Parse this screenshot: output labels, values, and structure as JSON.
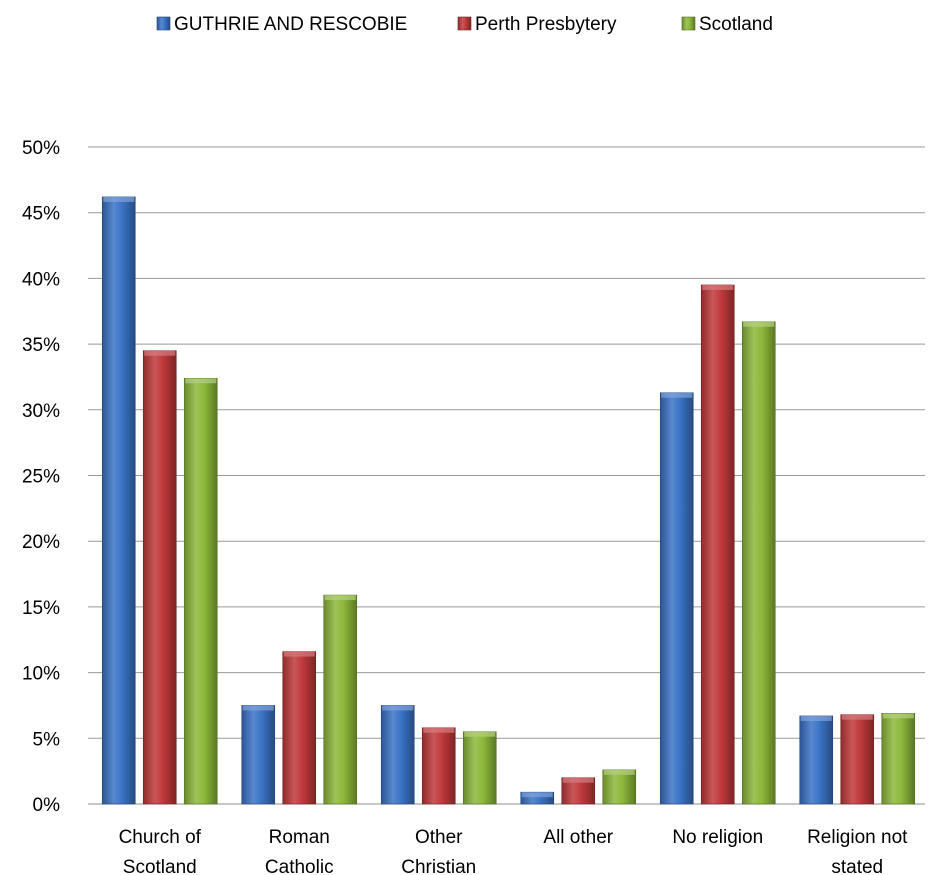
{
  "chart_data": {
    "type": "bar",
    "title": "",
    "xlabel": "",
    "ylabel": "",
    "categories": [
      [
        "Church of",
        "Scotland"
      ],
      [
        "Roman",
        "Catholic"
      ],
      [
        "Other",
        "Christian"
      ],
      [
        "All other"
      ],
      [
        "No religion"
      ],
      [
        "Religion not",
        "stated"
      ]
    ],
    "series": [
      {
        "name": "GUTHRIE AND RESCOBIE",
        "color": "#3B73C6",
        "values": [
          46.2,
          7.5,
          7.5,
          0.9,
          31.3,
          6.7
        ]
      },
      {
        "name": "Perth Presbytery",
        "color": "#C0393B",
        "values": [
          34.5,
          11.6,
          5.8,
          2.0,
          39.5,
          6.8
        ]
      },
      {
        "name": "Scotland",
        "color": "#8DB83A",
        "values": [
          32.4,
          15.9,
          5.5,
          2.6,
          36.7,
          6.9
        ]
      }
    ],
    "ylim": [
      0,
      50
    ],
    "yticks": [
      0,
      5,
      10,
      15,
      20,
      25,
      30,
      35,
      40,
      45,
      50
    ],
    "ytick_suffix": "%",
    "grid": true,
    "legend_position": "top-center"
  }
}
